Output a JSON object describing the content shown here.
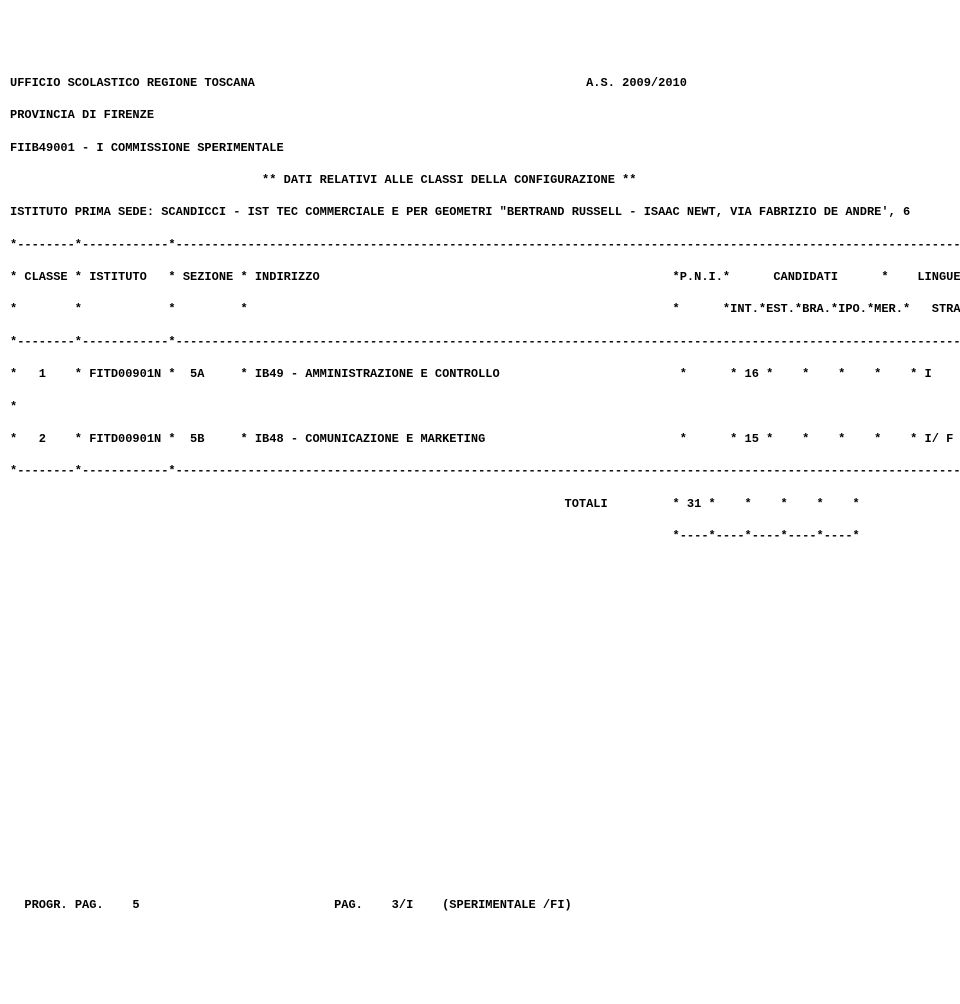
{
  "header": {
    "office": "UFFICIO SCOLASTICO REGIONE TOSCANA",
    "office_right": "A.S. 2009/2010",
    "province": "PROVINCIA DI FIRENZE",
    "commission": "FIIB49001 - I COMMISSIONE SPERIMENTALE",
    "title": "** DATI RELATIVI ALLE CLASSI DELLA CONFIGURAZIONE **",
    "institute": "ISTITUTO PRIMA SEDE: SCANDICCI - IST TEC COMMERCIALE E PER GEOMETRI \"BERTRAND RUSSELL - ISAAC NEWT, VIA FABRIZIO DE ANDRE', 6"
  },
  "table": {
    "divider": "*--------*------------*-------------------------------------------------------------------------------------------------------------*",
    "header1": "* CLASSE * ISTITUTO   * SEZIONE * INDIRIZZO                                                 *P.N.I.*      CANDIDATI      *    LINGUE     *",
    "header2": "*        *            *         *                                                           *      *INT.*EST.*BRA.*IPO.*MER.*   STRANIERE   *",
    "rows": {
      "r1": "*   1    * FITD00901N *  5A     * IB49 - AMMINISTRAZIONE E CONTROLLO                         *      * 16 *    *    *    *    * I             *",
      "gap": "*                                                                                                                                       *",
      "r2": "*   2    * FITD00901N *  5B     * IB48 - COMUNICAZIONE E MARKETING                           *      * 15 *    *    *    *    * I/ F          *"
    },
    "totals": {
      "line": "                                                                             TOTALI         * 31 *    *    *    *    *",
      "bottom": "                                                                                            *----*----*----*----*----*"
    }
  },
  "footer": {
    "left": "PROGR. PAG.    5",
    "mid": "PAG.    3/I",
    "right": "(SPERIMENTALE /FI)"
  },
  "colors": {
    "text": "#000000",
    "background": "#ffffff"
  },
  "typography": {
    "font_family": "Courier New",
    "font_size_pt": 9,
    "weight_header": "bold"
  }
}
